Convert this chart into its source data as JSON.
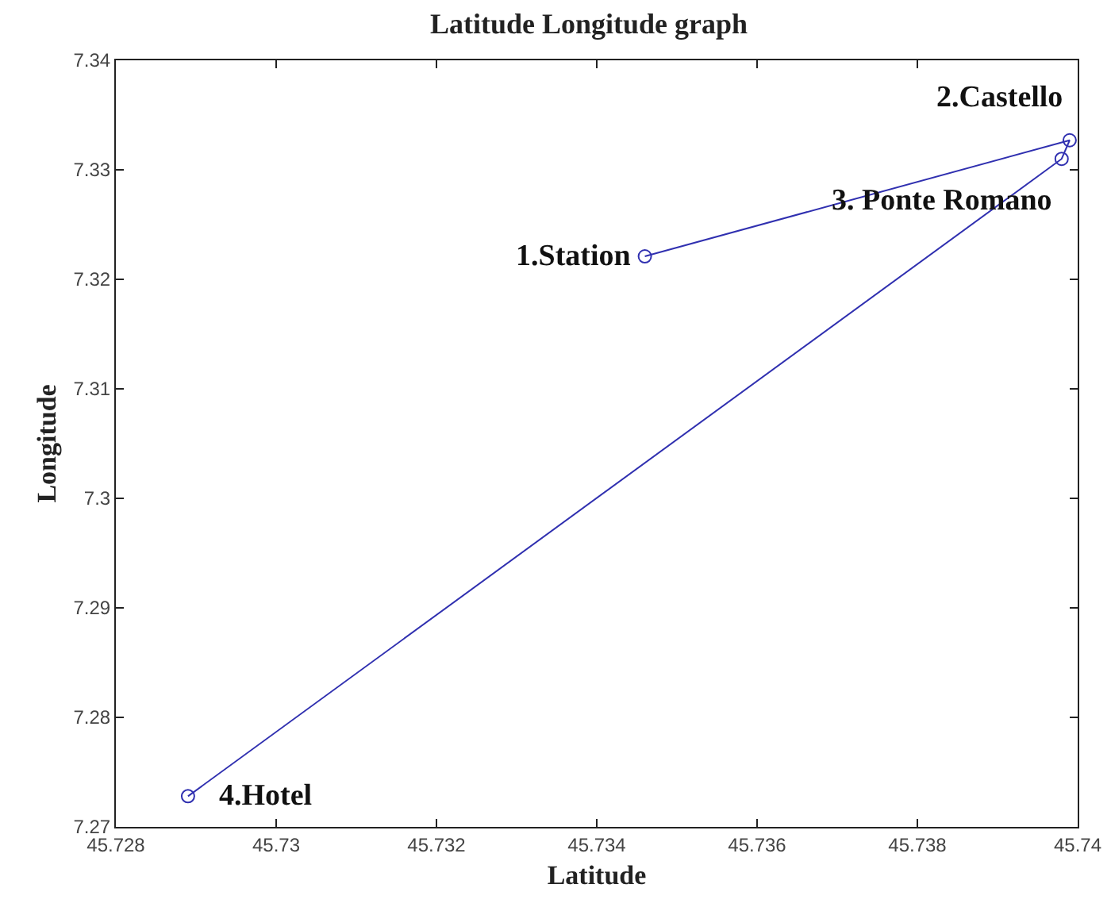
{
  "chart_data": {
    "type": "line",
    "title": "Latitude Longitude graph",
    "xlabel": "Latitude",
    "ylabel": "Longitude",
    "x": [
      45.7346,
      45.7399,
      45.7398,
      45.7289
    ],
    "series": [
      {
        "color": "#3030b0",
        "values": [
          7.3221,
          7.3327,
          7.331,
          7.2728
        ]
      }
    ],
    "marker": "circle",
    "line_style": "solid",
    "xlim": [
      45.728,
      45.74
    ],
    "xticks": [
      45.728,
      45.73,
      45.732,
      45.734,
      45.736,
      45.738,
      45.74
    ],
    "ylim": [
      7.27,
      7.34
    ],
    "yticks": [
      7.27,
      7.28,
      7.29,
      7.3,
      7.31,
      7.32,
      7.33,
      7.34
    ],
    "annotations": [
      {
        "text": "1.Station",
        "x": 45.7346,
        "y": 7.3221
      },
      {
        "text": "2.Castello",
        "x": 45.7399,
        "y": 7.3327
      },
      {
        "text": "3. Ponte Romano",
        "x": 45.7398,
        "y": 7.331
      },
      {
        "text": "4.Hotel",
        "x": 45.7289,
        "y": 7.2728
      }
    ]
  }
}
